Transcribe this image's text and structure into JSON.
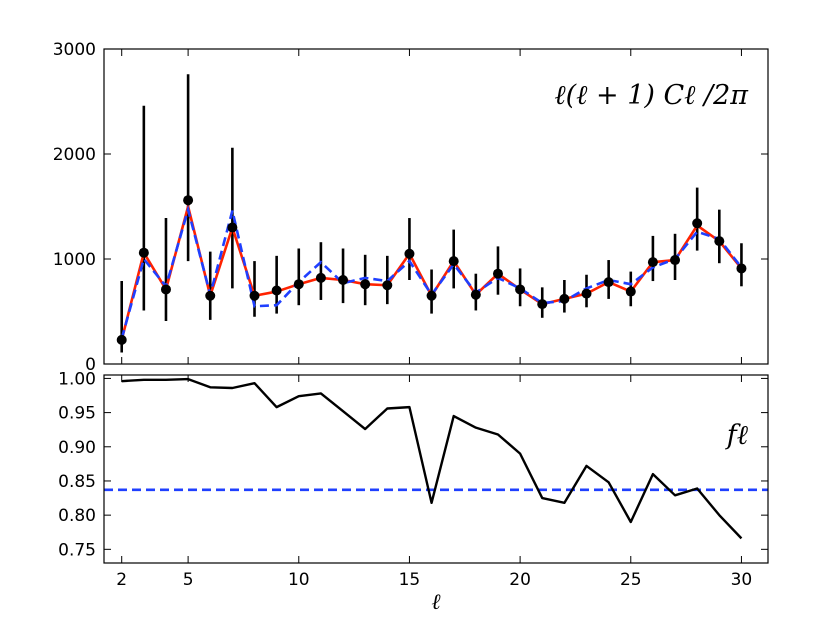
{
  "chart_data": [
    {
      "type": "line",
      "panel": "top",
      "annotation": "ℓ(ℓ + 1) Cℓ /2π",
      "xlim": [
        1.2,
        31.2
      ],
      "ylim": [
        0,
        3000
      ],
      "yticks": [
        0,
        1000,
        2000,
        3000
      ],
      "grid": false,
      "x": [
        2,
        3,
        4,
        5,
        6,
        7,
        8,
        9,
        10,
        11,
        12,
        13,
        14,
        15,
        16,
        17,
        18,
        19,
        20,
        21,
        22,
        23,
        24,
        25,
        26,
        27,
        28,
        29,
        30
      ],
      "series": [
        {
          "style": "points-with-errorbars",
          "color": "#000000",
          "values": [
            230,
            1060,
            710,
            1560,
            650,
            1300,
            650,
            700,
            760,
            820,
            800,
            760,
            750,
            1050,
            650,
            980,
            660,
            860,
            710,
            570,
            620,
            670,
            780,
            690,
            970,
            990,
            1340,
            1170,
            910
          ],
          "err_low": [
            120,
            550,
            300,
            580,
            230,
            580,
            200,
            220,
            200,
            210,
            220,
            200,
            180,
            250,
            170,
            260,
            150,
            200,
            160,
            130,
            130,
            130,
            160,
            140,
            180,
            190,
            260,
            210,
            170
          ],
          "err_high": [
            560,
            1400,
            680,
            1200,
            420,
            760,
            330,
            330,
            340,
            340,
            300,
            280,
            280,
            340,
            250,
            300,
            200,
            260,
            200,
            160,
            180,
            180,
            210,
            190,
            250,
            250,
            340,
            300,
            240
          ]
        },
        {
          "style": "solid",
          "color": "#ff2200",
          "values": [
            230,
            1060,
            710,
            1500,
            650,
            1300,
            650,
            690,
            760,
            820,
            800,
            760,
            750,
            1050,
            650,
            980,
            660,
            860,
            710,
            570,
            620,
            670,
            780,
            690,
            970,
            990,
            1320,
            1170,
            910
          ]
        },
        {
          "style": "dashed",
          "color": "#1f3fff",
          "values": [
            240,
            1000,
            740,
            1470,
            660,
            1460,
            550,
            560,
            780,
            970,
            770,
            820,
            790,
            980,
            660,
            950,
            680,
            820,
            720,
            580,
            600,
            720,
            800,
            760,
            920,
            1000,
            1260,
            1190,
            920
          ]
        }
      ]
    },
    {
      "type": "line",
      "panel": "bottom",
      "annotation": "fℓ",
      "xlabel": "ℓ",
      "xlim": [
        1.2,
        31.2
      ],
      "xticks": [
        2,
        5,
        10,
        15,
        20,
        25,
        30
      ],
      "ylim": [
        0.73,
        1.005
      ],
      "yticks": [
        0.75,
        0.8,
        0.85,
        0.9,
        0.95,
        1.0
      ],
      "grid": false,
      "x": [
        2,
        3,
        4,
        5,
        6,
        7,
        8,
        9,
        10,
        11,
        12,
        13,
        14,
        15,
        16,
        17,
        18,
        19,
        20,
        21,
        22,
        23,
        24,
        25,
        26,
        27,
        28,
        29,
        30
      ],
      "series": [
        {
          "style": "solid",
          "color": "#000000",
          "values": [
            0.996,
            0.998,
            0.998,
            0.999,
            0.987,
            0.986,
            0.993,
            0.958,
            0.974,
            0.978,
            0.952,
            0.926,
            0.956,
            0.958,
            0.818,
            0.945,
            0.928,
            0.918,
            0.89,
            0.825,
            0.818,
            0.872,
            0.848,
            0.79,
            0.86,
            0.829,
            0.839,
            0.8,
            0.766
          ]
        },
        {
          "style": "dashed-horizontal",
          "color": "#1f3fff",
          "y": 0.837
        }
      ]
    }
  ]
}
